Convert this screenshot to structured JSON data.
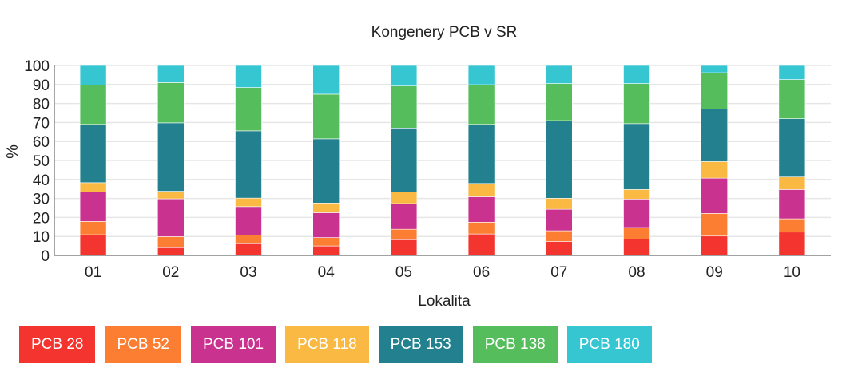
{
  "chart_data": {
    "type": "bar",
    "stacked": true,
    "title": "Kongenery PCB v SR",
    "xlabel": "Lokalita",
    "ylabel": "%",
    "ylim": [
      0,
      100
    ],
    "yticks": [
      0,
      10,
      20,
      30,
      40,
      50,
      60,
      70,
      80,
      90,
      100
    ],
    "grid": true,
    "legend_position": "bottom-left",
    "categories": [
      "01",
      "02",
      "03",
      "04",
      "05",
      "06",
      "07",
      "08",
      "09",
      "10"
    ],
    "series": [
      {
        "name": "PCB 28",
        "color": "#f4342e",
        "values": [
          10.9,
          4.1,
          6.2,
          5.0,
          8.3,
          11.3,
          7.4,
          8.7,
          10.2,
          12.3
        ]
      },
      {
        "name": "PCB 52",
        "color": "#fc7e32",
        "values": [
          7.0,
          5.8,
          4.6,
          4.4,
          5.5,
          6.2,
          5.6,
          6.0,
          11.9,
          7.0
        ]
      },
      {
        "name": "PCB 101",
        "color": "#c9338f",
        "values": [
          15.5,
          19.9,
          14.9,
          13.1,
          13.5,
          13.4,
          11.3,
          15.0,
          18.6,
          15.4
        ]
      },
      {
        "name": "PCB 118",
        "color": "#f9b943",
        "values": [
          4.9,
          4.0,
          4.5,
          5.1,
          6.1,
          7.0,
          5.8,
          5.0,
          8.7,
          6.6
        ]
      },
      {
        "name": "PCB 153",
        "color": "#22808f",
        "values": [
          30.7,
          36.0,
          35.4,
          33.8,
          33.7,
          31.1,
          40.9,
          34.7,
          27.7,
          30.7
        ]
      },
      {
        "name": "PCB 138",
        "color": "#55bd5b",
        "values": [
          20.7,
          21.2,
          22.8,
          23.5,
          22.1,
          20.9,
          19.5,
          21.1,
          19.1,
          20.6
        ]
      },
      {
        "name": "PCB 180",
        "color": "#35c6d2",
        "values": [
          10.3,
          9.0,
          11.6,
          15.1,
          10.8,
          10.1,
          9.5,
          9.5,
          3.8,
          7.4
        ]
      }
    ]
  }
}
